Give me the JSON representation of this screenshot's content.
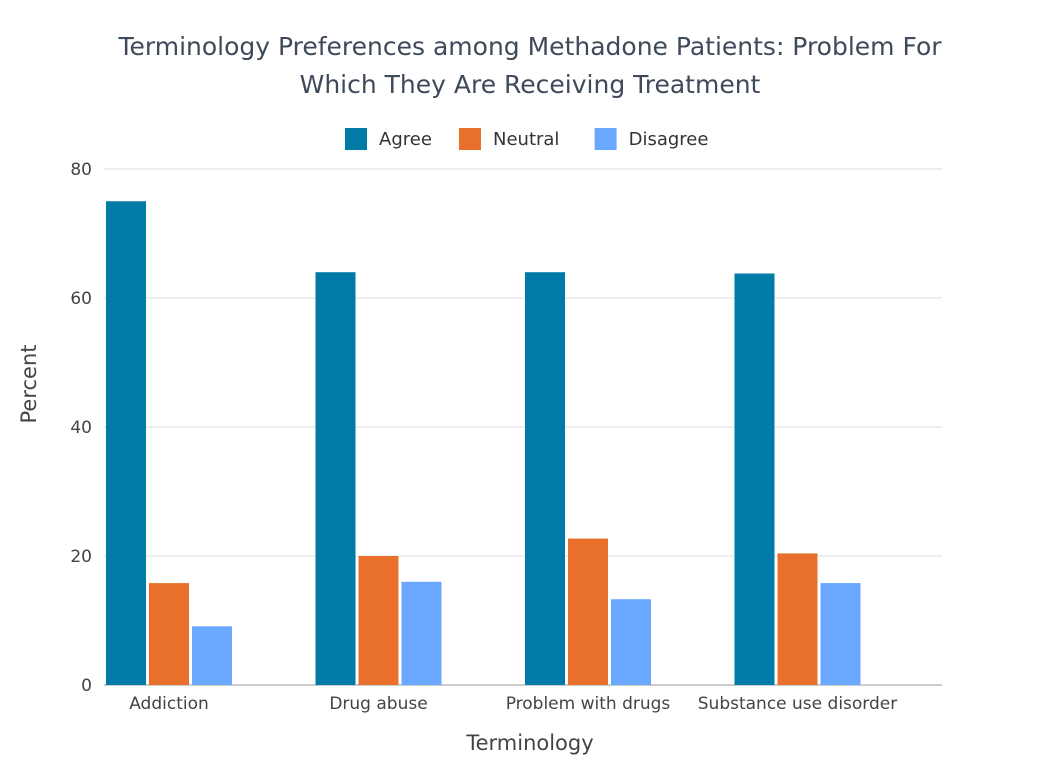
{
  "chart_data": {
    "type": "bar",
    "title_line1": "Terminology Preferences among Methadone Patients: Problem For",
    "title_line2": "Which They Are Receiving Treatment",
    "xlabel": "Terminology",
    "ylabel": "Percent",
    "ylim": [
      0,
      80
    ],
    "yticks": [
      "0",
      "20",
      "40",
      "60",
      "80"
    ],
    "grid": true,
    "legend_position": "top",
    "categories": [
      "Addiction",
      "Drug abuse",
      "Problem with drugs",
      "Substance use disorder"
    ],
    "series": [
      {
        "name": "Agree",
        "color": "#007ba7",
        "values": [
          75.0,
          64.0,
          64.0,
          63.8
        ]
      },
      {
        "name": "Neutral",
        "color": "#e8702a",
        "values": [
          15.8,
          20.0,
          22.7,
          20.4
        ]
      },
      {
        "name": "Disagree",
        "color": "#6aa8ff",
        "values": [
          9.1,
          16.0,
          13.3,
          15.8
        ]
      }
    ]
  }
}
